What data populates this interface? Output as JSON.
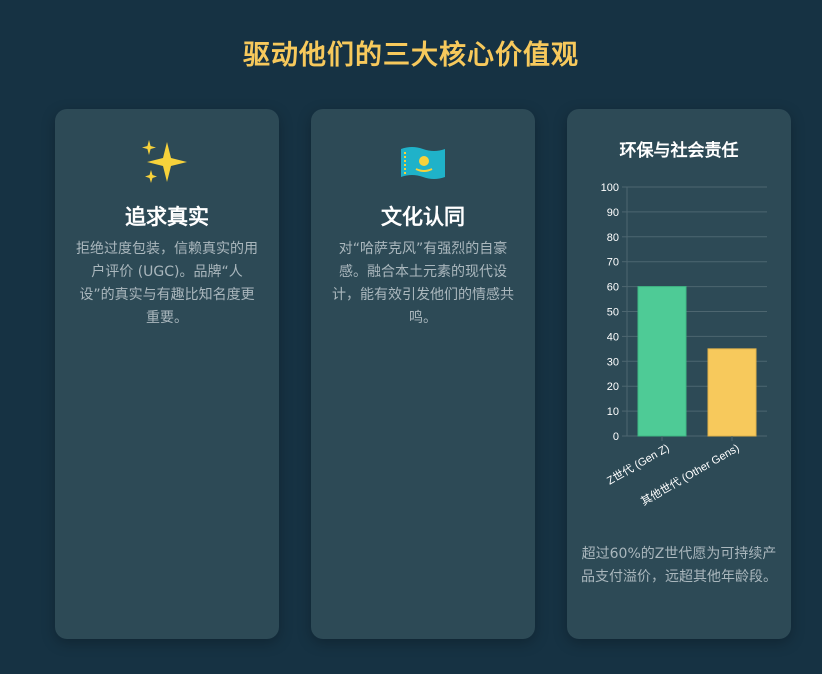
{
  "page": {
    "title": "驱动他们的三大核心价值观"
  },
  "cards": [
    {
      "icon": "sparkles-icon",
      "title": "追求真实",
      "desc": "拒绝过度包装，信赖真实的用户评价 (UGC)。品牌“人设”的真实与有趣比知名度更重要。"
    },
    {
      "icon": "kazakhstan-flag-icon",
      "title": "文化认同",
      "desc": "对“哈萨克风”有强烈的自豪感。融合本土元素的现代设计，能有效引发他们的情感共鸣。"
    }
  ],
  "chart_card": {
    "title": "环保与社会责任",
    "note": "超过60%的Z世代愿为可持续产品支付溢价，远超其他年龄段。"
  },
  "chart_data": {
    "type": "bar",
    "title": "环保与社会责任",
    "categories": [
      "Z世代 (Gen Z)",
      "其他世代 (Other Gens)"
    ],
    "values": [
      60,
      35
    ],
    "colors": [
      "#4ecb96",
      "#f7c95c"
    ],
    "yticks": [
      0,
      10,
      20,
      30,
      40,
      50,
      60,
      70,
      80,
      90,
      100
    ],
    "ylim": [
      0,
      100
    ],
    "grid": true,
    "xlabel": "",
    "ylabel": ""
  },
  "colors": {
    "background": "#163243",
    "card": "#2d4a56",
    "accent": "#f7c95c",
    "green": "#4ecb96"
  }
}
